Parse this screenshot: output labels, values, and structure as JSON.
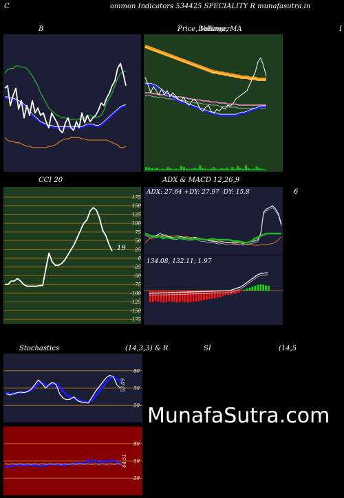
{
  "header": {
    "left_letter": "C",
    "title": "ommon  Indicators 534425 SPECIALITY R munafasutra.in"
  },
  "panels": {
    "bollinger": {
      "title": "B"
    },
    "price_ma": {
      "title": "Price,  Volume,  MA",
      "overlap_title": "Bollinger"
    },
    "right_edge_letter": "I",
    "cci": {
      "title": "CCI 20",
      "value_label": "19"
    },
    "adx_macd": {
      "title": "ADX  & MACD 12,26,9",
      "adx_text": "ADX: 27.64   +DY: 27.97 -DY: 15.8",
      "macd_text": "134.08,   132.11,   1.97"
    },
    "side_number": "6",
    "stochastics": {
      "title_left": "Stochastics",
      "title_mid": "(14,3,3) & R",
      "title_si": "SI",
      "title_right": "(14,5",
      "value_label": "53.09"
    },
    "rsi": {
      "value_label": "44.51"
    }
  },
  "watermark": "MunafaSutra.com",
  "colors": {
    "navy_bg": "#1c1e36",
    "green_bg": "#1d3d1e",
    "red_bg": "#870000",
    "grid_orange": "#c87d19",
    "line_blue": "#1a1aff",
    "line_green": "#1fb81f",
    "line_orange": "#d47a1a",
    "macd_red": "#ff1111",
    "macd_green": "#11dd11",
    "ma_orange": "#ff9b1a",
    "pink": "#ff8fd8"
  },
  "chart_data": [
    {
      "type": "line",
      "name": "bollinger",
      "x": [
        0,
        1,
        2,
        3,
        4,
        5,
        6,
        7,
        8,
        9,
        10,
        11,
        12,
        13,
        14,
        15,
        16,
        17,
        18,
        19,
        20,
        21,
        22,
        23,
        24,
        25,
        26,
        27,
        28,
        29,
        30,
        31,
        32,
        33,
        34,
        35,
        36,
        37,
        38,
        39,
        40,
        41,
        42,
        43,
        44
      ],
      "series": [
        {
          "name": "price",
          "values": [
            0.38,
            0.36,
            0.52,
            0.44,
            0.38,
            0.55,
            0.48,
            0.62,
            0.52,
            0.6,
            0.48,
            0.58,
            0.54,
            0.6,
            0.58,
            0.65,
            0.7,
            0.58,
            0.62,
            0.66,
            0.72,
            0.74,
            0.66,
            0.62,
            0.7,
            0.72,
            0.65,
            0.7,
            0.58,
            0.66,
            0.6,
            0.65,
            0.62,
            0.6,
            0.56,
            0.5,
            0.52,
            0.46,
            0.42,
            0.36,
            0.32,
            0.22,
            0.18,
            0.26,
            0.36
          ]
        },
        {
          "name": "upper",
          "values": [
            0.26,
            0.23,
            0.22,
            0.22,
            0.2,
            0.2,
            0.21,
            0.21,
            0.22,
            0.25,
            0.28,
            0.32,
            0.36,
            0.42,
            0.46,
            0.5,
            0.54,
            0.56,
            0.58,
            0.6,
            0.61,
            0.62,
            0.62,
            0.63,
            0.63,
            0.63,
            0.64,
            0.63,
            0.63,
            0.62,
            0.6,
            0.6,
            0.61,
            0.62,
            0.61,
            0.6,
            0.56,
            0.5,
            0.46,
            0.42,
            0.36,
            0.3,
            0.26,
            0.25,
            0.24
          ]
        },
        {
          "name": "middle",
          "values": [
            0.46,
            0.46,
            0.47,
            0.47,
            0.48,
            0.49,
            0.5,
            0.52,
            0.54,
            0.57,
            0.6,
            0.62,
            0.64,
            0.66,
            0.67,
            0.68,
            0.69,
            0.69,
            0.7,
            0.7,
            0.7,
            0.7,
            0.7,
            0.7,
            0.7,
            0.7,
            0.7,
            0.7,
            0.7,
            0.69,
            0.68,
            0.68,
            0.68,
            0.69,
            0.69,
            0.68,
            0.66,
            0.64,
            0.62,
            0.6,
            0.58,
            0.56,
            0.54,
            0.53,
            0.52
          ]
        },
        {
          "name": "lower",
          "values": [
            0.78,
            0.8,
            0.81,
            0.81,
            0.82,
            0.82,
            0.83,
            0.84,
            0.85,
            0.85,
            0.86,
            0.86,
            0.86,
            0.86,
            0.86,
            0.86,
            0.85,
            0.85,
            0.84,
            0.83,
            0.81,
            0.8,
            0.79,
            0.79,
            0.78,
            0.78,
            0.78,
            0.78,
            0.79,
            0.79,
            0.8,
            0.8,
            0.8,
            0.8,
            0.8,
            0.8,
            0.8,
            0.8,
            0.81,
            0.82,
            0.83,
            0.84,
            0.86,
            0.86,
            0.85
          ]
        }
      ]
    },
    {
      "type": "line",
      "name": "price_ma",
      "x": [
        0,
        1,
        2,
        3,
        4,
        5,
        6,
        7,
        8,
        9,
        10,
        11,
        12,
        13,
        14,
        15,
        16,
        17,
        18,
        19,
        20,
        21,
        22,
        23,
        24,
        25,
        26,
        27,
        28,
        29,
        30,
        31,
        32,
        33,
        34,
        35,
        36,
        37,
        38,
        39,
        40,
        41,
        42,
        43,
        44
      ],
      "series": [
        {
          "name": "price",
          "values": [
            0.35,
            0.42,
            0.5,
            0.44,
            0.48,
            0.52,
            0.46,
            0.52,
            0.48,
            0.54,
            0.5,
            0.53,
            0.56,
            0.58,
            0.54,
            0.6,
            0.62,
            0.58,
            0.56,
            0.6,
            0.66,
            0.68,
            0.64,
            0.62,
            0.68,
            0.7,
            0.66,
            0.68,
            0.64,
            0.66,
            0.62,
            0.63,
            0.6,
            0.56,
            0.54,
            0.52,
            0.5,
            0.48,
            0.42,
            0.36,
            0.3,
            0.2,
            0.16,
            0.24,
            0.34
          ]
        },
        {
          "name": "ma_upper",
          "values": [
            0.05,
            0.06,
            0.07,
            0.08,
            0.09,
            0.1,
            0.11,
            0.12,
            0.13,
            0.14,
            0.15,
            0.16,
            0.17,
            0.18,
            0.19,
            0.2,
            0.21,
            0.22,
            0.23,
            0.24,
            0.25,
            0.26,
            0.27,
            0.28,
            0.29,
            0.3,
            0.3,
            0.31,
            0.31,
            0.32,
            0.32,
            0.33,
            0.33,
            0.34,
            0.34,
            0.35,
            0.35,
            0.35,
            0.36,
            0.36,
            0.36,
            0.37,
            0.37,
            0.37,
            0.37
          ]
        },
        {
          "name": "ma_blue",
          "values": [
            0.42,
            0.42,
            0.42,
            0.43,
            0.44,
            0.46,
            0.48,
            0.5,
            0.52,
            0.53,
            0.55,
            0.56,
            0.58,
            0.59,
            0.6,
            0.61,
            0.62,
            0.63,
            0.64,
            0.65,
            0.66,
            0.67,
            0.68,
            0.69,
            0.7,
            0.7,
            0.71,
            0.72,
            0.72,
            0.72,
            0.72,
            0.72,
            0.72,
            0.72,
            0.71,
            0.7,
            0.7,
            0.69,
            0.68,
            0.67,
            0.66,
            0.65,
            0.64,
            0.64,
            0.64
          ]
        },
        {
          "name": "ma_pink",
          "values": [
            0.5,
            0.5,
            0.5,
            0.51,
            0.51,
            0.52,
            0.52,
            0.52,
            0.53,
            0.53,
            0.53,
            0.54,
            0.54,
            0.54,
            0.55,
            0.55,
            0.56,
            0.56,
            0.57,
            0.57,
            0.57,
            0.58,
            0.58,
            0.58,
            0.59,
            0.59,
            0.59,
            0.6,
            0.6,
            0.6,
            0.61,
            0.61,
            0.61,
            0.61,
            0.62,
            0.62,
            0.62,
            0.62,
            0.62,
            0.62,
            0.62,
            0.62,
            0.62,
            0.62,
            0.62
          ]
        }
      ],
      "volume": [
        0.6,
        0.5,
        0.4,
        0.3,
        0.5,
        0.2,
        0.3,
        0.2,
        0.6,
        0.4,
        0.2,
        0.3,
        0.2,
        0.8,
        0.6,
        0.3,
        0.2,
        0.3,
        0.5,
        0.3,
        0.9,
        0.4,
        0.3,
        0.2,
        0.3,
        0.6,
        0.3,
        0.2,
        0.4,
        0.3,
        0.5,
        0.2,
        0.6,
        0.3,
        0.8,
        0.4,
        0.3,
        0.9,
        0.4,
        0.2,
        0.3,
        0.7,
        0.4,
        0.3,
        0.2
      ]
    },
    {
      "type": "line",
      "name": "cci_20",
      "ylim": [
        -175,
        175
      ],
      "ylabels": [
        "175",
        "150",
        "125",
        "100",
        "75",
        "50",
        "25",
        "0",
        "-25",
        "-50",
        "-75",
        "-100",
        "-125",
        "-150",
        "-175"
      ],
      "values": [
        -75,
        -75,
        -65,
        -65,
        -58,
        -65,
        -75,
        -80,
        -80,
        -80,
        -80,
        -78,
        -78,
        -30,
        15,
        -10,
        -20,
        -20,
        -15,
        -5,
        10,
        25,
        40,
        60,
        80,
        100,
        110,
        135,
        145,
        138,
        115,
        80,
        65,
        40,
        20
      ]
    },
    {
      "type": "line",
      "name": "adx",
      "series": [
        {
          "name": "adx",
          "values": [
            0.7,
            0.72,
            0.75,
            0.74,
            0.73,
            0.7,
            0.72,
            0.74,
            0.75,
            0.76,
            0.77,
            0.76,
            0.75,
            0.76,
            0.77,
            0.78,
            0.77,
            0.76,
            0.78,
            0.8,
            0.8,
            0.81,
            0.82,
            0.82,
            0.83,
            0.84,
            0.83,
            0.84,
            0.85,
            0.85,
            0.84,
            0.85,
            0.84,
            0.86,
            0.85,
            0.84,
            0.83,
            0.82,
            0.8,
            0.7,
            0.35,
            0.3,
            0.28,
            0.25,
            0.3,
            0.38,
            0.55
          ]
        },
        {
          "name": "plus_dy",
          "values": [
            0.7,
            0.72,
            0.74,
            0.74,
            0.76,
            0.74,
            0.78,
            0.76,
            0.77,
            0.78,
            0.77,
            0.76,
            0.78,
            0.79,
            0.77,
            0.79,
            0.8,
            0.78,
            0.78,
            0.79,
            0.8,
            0.8,
            0.79,
            0.79,
            0.8,
            0.8,
            0.8,
            0.8,
            0.8,
            0.81,
            0.82,
            0.82,
            0.83,
            0.84,
            0.85,
            0.84,
            0.82,
            0.78,
            0.76,
            0.74,
            0.72,
            0.7,
            0.7,
            0.7,
            0.7,
            0.7,
            0.7
          ]
        },
        {
          "name": "minus_dy",
          "values": [
            0.85,
            0.8,
            0.77,
            0.75,
            0.72,
            0.74,
            0.73,
            0.72,
            0.75,
            0.74,
            0.74,
            0.73,
            0.75,
            0.76,
            0.75,
            0.76,
            0.77,
            0.78,
            0.77,
            0.8,
            0.79,
            0.8,
            0.82,
            0.83,
            0.83,
            0.82,
            0.83,
            0.84,
            0.84,
            0.85,
            0.86,
            0.87,
            0.87,
            0.88,
            0.88,
            0.88,
            0.88,
            0.89,
            0.89,
            0.88,
            0.88,
            0.88,
            0.87,
            0.86,
            0.84,
            0.8,
            0.75
          ]
        }
      ]
    },
    {
      "type": "bar",
      "name": "macd_histogram",
      "values": [
        -0.6,
        -0.6,
        -0.55,
        -0.58,
        -0.6,
        -0.62,
        -0.6,
        -0.56,
        -0.58,
        -0.6,
        -0.62,
        -0.6,
        -0.58,
        -0.6,
        -0.62,
        -0.6,
        -0.58,
        -0.56,
        -0.55,
        -0.53,
        -0.5,
        -0.48,
        -0.45,
        -0.42,
        -0.4,
        -0.38,
        -0.35,
        -0.3,
        -0.25,
        -0.22,
        -0.2,
        -0.18,
        -0.15,
        -0.1,
        -0.05,
        0.05,
        0.1,
        0.15,
        0.2,
        0.25,
        0.3,
        0.32,
        0.3,
        0.28,
        0.25
      ]
    },
    {
      "type": "line",
      "name": "stochastics",
      "ylim": [
        0,
        100
      ],
      "ylabels": [
        "80",
        "50",
        "20"
      ],
      "series": [
        {
          "name": "k",
          "values": [
            40,
            38,
            40,
            42,
            43,
            42,
            44,
            48,
            56,
            64,
            58,
            50,
            56,
            60,
            56,
            40,
            32,
            30,
            31,
            35,
            28,
            26,
            25,
            24,
            34,
            44,
            52,
            60,
            68,
            72,
            70,
            56,
            50
          ]
        },
        {
          "name": "d",
          "values": [
            42,
            40,
            40,
            41,
            42,
            43,
            44,
            46,
            52,
            58,
            60,
            56,
            54,
            56,
            58,
            52,
            44,
            38,
            34,
            32,
            30,
            28,
            26,
            26,
            29,
            36,
            44,
            52,
            60,
            66,
            70,
            66,
            60
          ]
        }
      ]
    },
    {
      "type": "line",
      "name": "rsi",
      "ylim": [
        0,
        100
      ],
      "ylabels": [
        "80",
        "50",
        "20"
      ],
      "series": [
        {
          "name": "rsi",
          "values": [
            38,
            41,
            40,
            43,
            44,
            41,
            44,
            42,
            43,
            41,
            40,
            43,
            44,
            45,
            43,
            44,
            42,
            45,
            44,
            47,
            46,
            45,
            51,
            48,
            52,
            47,
            50,
            49,
            51,
            50,
            47,
            44
          ]
        },
        {
          "name": "rsi_thin",
          "values": [
            45,
            44,
            45,
            44,
            45,
            44,
            45,
            44,
            45,
            44,
            45,
            44,
            45,
            44,
            45,
            44,
            45,
            44,
            45,
            44,
            45,
            44,
            45,
            44,
            45,
            44,
            45,
            44,
            45,
            44,
            45,
            44
          ]
        }
      ]
    }
  ]
}
